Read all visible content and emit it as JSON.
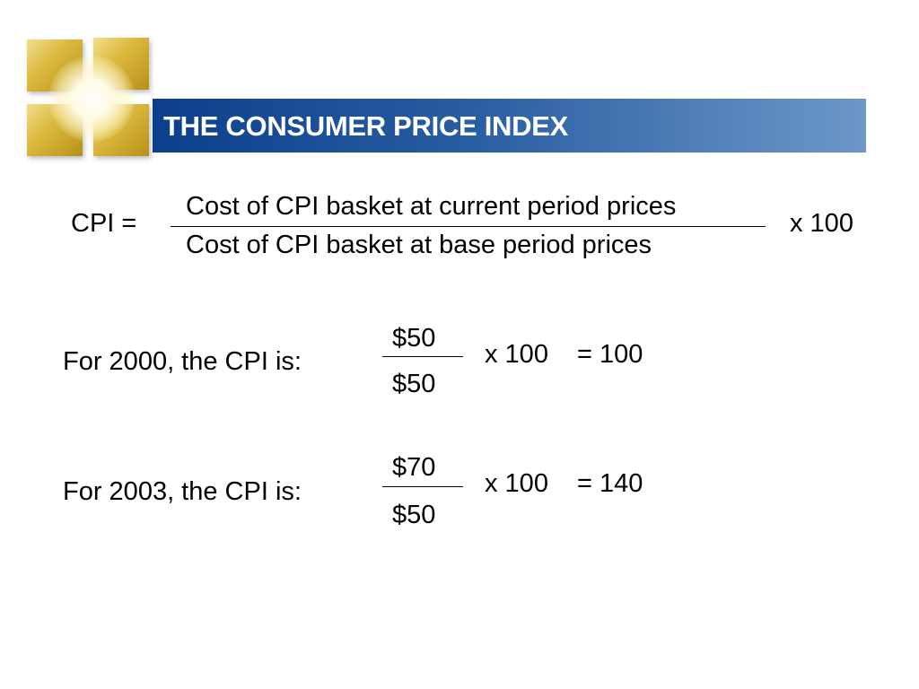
{
  "title": "THE CONSUMER PRICE INDEX",
  "formula": {
    "lhs": "CPI =",
    "numerator": "Cost of CPI basket at current period prices",
    "denominator": "Cost of CPI basket at base period prices",
    "multiplier": "x 100"
  },
  "examples": [
    {
      "label": "For 2000, the CPI is:",
      "numerator": "$50",
      "denominator": "$50",
      "multiplier": "x 100",
      "result": "= 100"
    },
    {
      "label": "For 2003, the CPI is:",
      "numerator": "$70",
      "denominator": "$50",
      "multiplier": "x 100",
      "result": "= 140"
    }
  ]
}
